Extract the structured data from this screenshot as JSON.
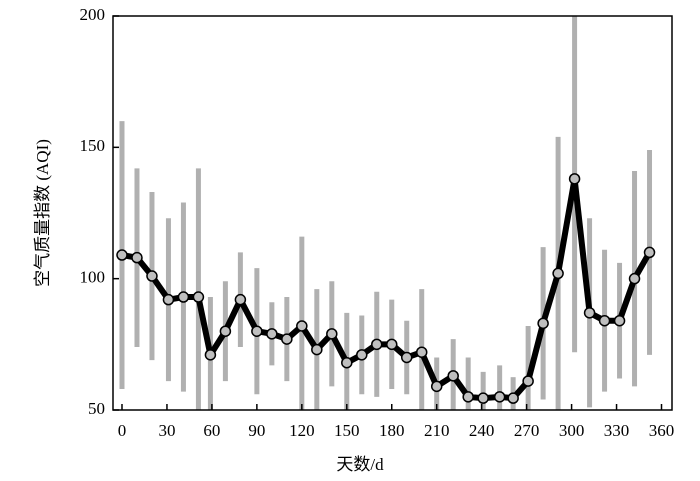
{
  "chart_data": {
    "type": "line",
    "xlabel": "天数/d",
    "ylabel": "空气质量指数 (AQI)",
    "x": [
      0,
      10,
      20,
      31,
      41,
      51,
      59,
      69,
      79,
      90,
      100,
      110,
      120,
      130,
      140,
      150,
      160,
      170,
      180,
      190,
      200,
      210,
      221,
      231,
      241,
      252,
      261,
      271,
      281,
      291,
      302,
      312,
      322,
      332,
      342,
      352
    ],
    "series": [
      {
        "color": "#000000",
        "marker_color": "#bfbfbf",
        "error_color": "#b0b0b0",
        "values": [
          109,
          108,
          101,
          92,
          93,
          93,
          71,
          80,
          92,
          80,
          79,
          77,
          82,
          73,
          79,
          68,
          71,
          75,
          75,
          70,
          72,
          59,
          63,
          55,
          54.5,
          55,
          54.5,
          61,
          83,
          102,
          138,
          87,
          84,
          84,
          100,
          110
        ],
        "errors": [
          51,
          34,
          32,
          31,
          36,
          49,
          22,
          19,
          18,
          24,
          12,
          16,
          34,
          23,
          20,
          19,
          15,
          20,
          17,
          14,
          24,
          11,
          14,
          15,
          10,
          12,
          8,
          21,
          29,
          52,
          66,
          36,
          27,
          22,
          41,
          39
        ]
      }
    ],
    "xlim": [
      -6,
      367
    ],
    "ylim": [
      50,
      200
    ],
    "xticks": [
      0,
      30,
      60,
      90,
      120,
      150,
      180,
      210,
      240,
      270,
      300,
      330,
      360
    ],
    "yticks": [
      50,
      100,
      150,
      200
    ]
  }
}
